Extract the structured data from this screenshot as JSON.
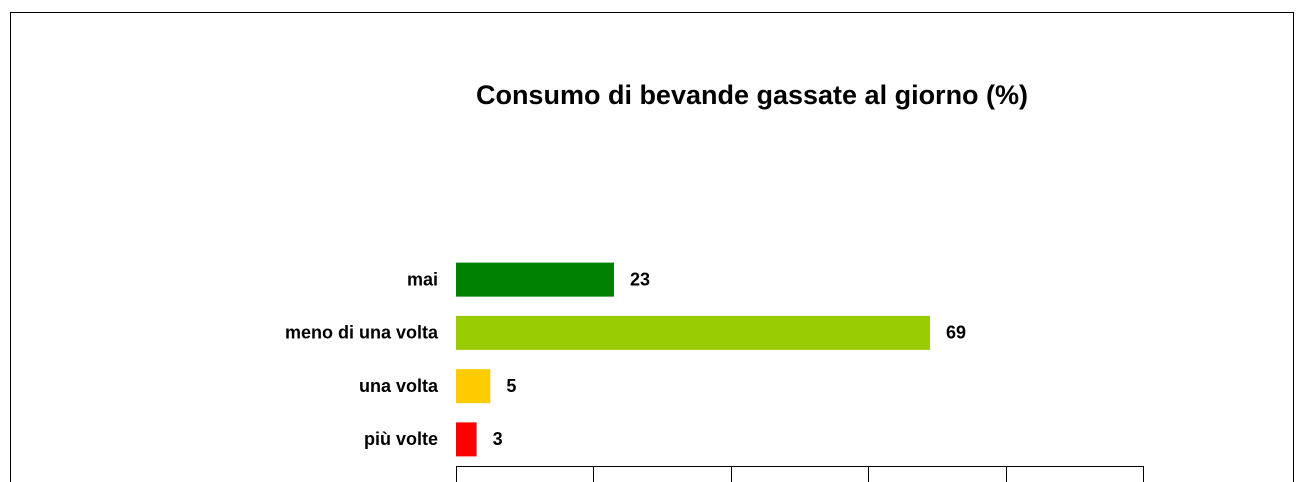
{
  "chart_data": {
    "type": "hbar",
    "title": "Consumo di bevande gassate al giorno (%)",
    "categories": [
      "mai",
      "meno di una volta",
      "una volta",
      "più volte"
    ],
    "values": [
      23,
      69,
      5,
      3
    ],
    "colors": [
      "#008000",
      "#99cc00",
      "#ffcc00",
      "#ff0000"
    ],
    "xlim": [
      0,
      100
    ],
    "xticks": [
      0,
      20,
      40,
      60,
      80,
      100
    ]
  }
}
